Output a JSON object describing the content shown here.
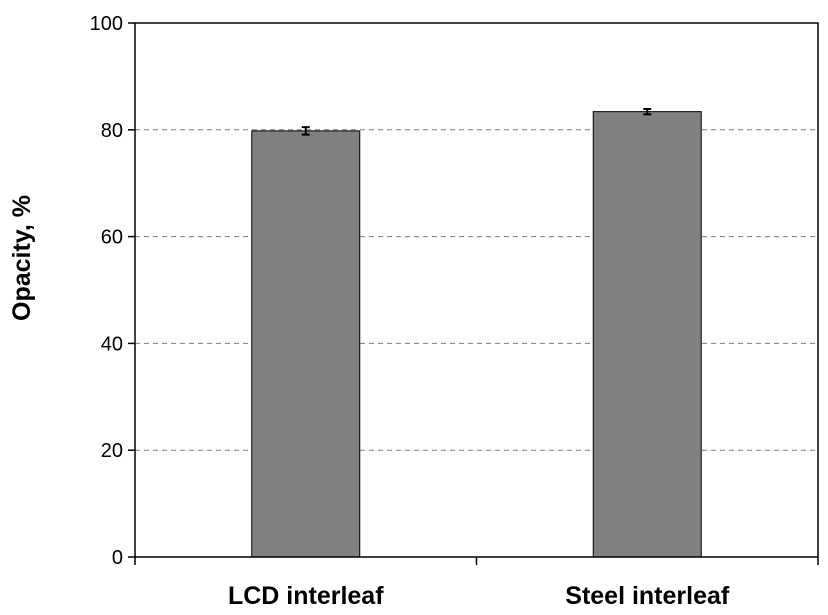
{
  "chart_data": {
    "type": "bar",
    "categories": [
      "LCD interleaf",
      "Steel interleaf"
    ],
    "series": [
      {
        "values": [
          79.8,
          83.4
        ],
        "errors": [
          0.7,
          0.5
        ],
        "color": "#808080"
      }
    ],
    "title": "",
    "xlabel": "",
    "ylabel": "Opacity, %",
    "ylim": [
      0,
      100
    ],
    "yticks": [
      0,
      20,
      40,
      60,
      80,
      100
    ],
    "grid": "horizontal dashed",
    "legend": "none"
  }
}
